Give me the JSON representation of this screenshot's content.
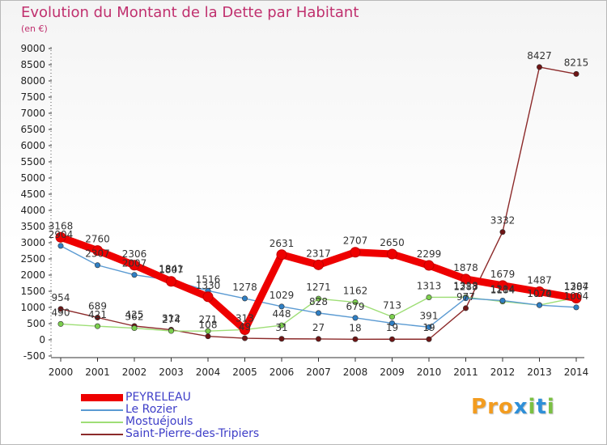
{
  "header": {
    "title": "Evolution du Montant de la Dette par Habitant",
    "subtitle": "(en €)"
  },
  "logo": {
    "text": "Proxiti",
    "colors": [
      "#f39c1f",
      "#2e8fd8",
      "#7bc043"
    ]
  },
  "colors": {
    "title": "#c0306e",
    "legend_text": "#3e3ec8",
    "axis": "#333333",
    "background_top": "#f4f4f4"
  },
  "chart_data": {
    "type": "line",
    "x": [
      "2000",
      "2001",
      "2002",
      "2003",
      "2004",
      "2005",
      "2006",
      "2007",
      "2008",
      "2009",
      "2010",
      "2011",
      "2012",
      "2013",
      "2014"
    ],
    "ylim": [
      -500,
      9000
    ],
    "yticks": [
      -500,
      0,
      500,
      1000,
      1500,
      2000,
      2500,
      3000,
      3500,
      4000,
      4500,
      5000,
      5500,
      6000,
      6500,
      7000,
      7500,
      8000,
      8500,
      9000
    ],
    "grid": false,
    "legend_position": "bottom-left",
    "series": [
      {
        "name": "PEYRELEAU",
        "color": "#ee0000",
        "marker": "#ee0000",
        "width": 9,
        "values": [
          3168,
          2760,
          2306,
          1807,
          1330,
          313,
          2631,
          2317,
          2707,
          2650,
          2299,
          1878,
          1679,
          1487,
          1287
        ],
        "labels": [
          "3168",
          "2760",
          "2306",
          "1807",
          "1330",
          "313",
          "2631",
          "2317",
          "2707",
          "2650",
          "2299",
          "1878",
          "1679",
          "1487",
          "1287"
        ]
      },
      {
        "name": "Le Rozier",
        "color": "#5a9ad2",
        "marker": "#2f7fc4",
        "width": 1.4,
        "values": [
          2904,
          2307,
          2007,
          1841,
          1516,
          1278,
          1029,
          828,
          679,
          513,
          391,
          1283,
          1214,
          1070,
          1004
        ],
        "labels": [
          "2904",
          "2307",
          "2007",
          "1841",
          "1516",
          "1278",
          "1029",
          "828",
          "679",
          "",
          "391",
          "1283",
          "1214",
          "1070",
          "1004"
        ]
      },
      {
        "name": "Mostuéjouls",
        "color": "#9ede76",
        "marker": "#7ccf4e",
        "width": 1.4,
        "values": [
          490,
          421,
          362,
          274,
          271,
          313,
          448,
          1271,
          1162,
          713,
          1313,
          1318,
          1184,
          1074,
          1304
        ],
        "labels": [
          "490",
          "421",
          "362",
          "274",
          "271",
          "",
          "448",
          "1271",
          "1162",
          "713",
          "1313",
          "1318",
          "1184",
          "1074",
          "1304"
        ]
      },
      {
        "name": "Saint-Pierre-des-Tripiers",
        "color": "#8c2a2a",
        "marker": "#6e1515",
        "width": 1.4,
        "values": [
          954,
          689,
          425,
          312,
          108,
          49,
          31,
          27,
          18,
          19,
          19,
          977,
          3332,
          8427,
          8215
        ],
        "labels": [
          "954",
          "689",
          "425",
          "312",
          "108",
          "49",
          "31",
          "27",
          "18",
          "19",
          "19",
          "977",
          "3332",
          "8427",
          "8215"
        ]
      }
    ]
  }
}
